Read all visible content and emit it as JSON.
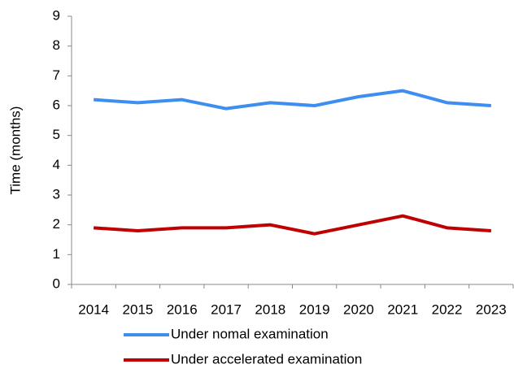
{
  "chart_data": {
    "type": "line",
    "y_label": "Time (months)",
    "categories": [
      "2014",
      "2015",
      "2016",
      "2017",
      "2018",
      "2019",
      "2020",
      "2021",
      "2022",
      "2023"
    ],
    "series": [
      {
        "name": "Under nomal examination",
        "color": "#3d8ef0",
        "values": [
          6.2,
          6.1,
          6.2,
          5.9,
          6.1,
          6.0,
          6.3,
          6.5,
          6.1,
          6.0
        ]
      },
      {
        "name": "Under accelerated examination",
        "color": "#c00000",
        "values": [
          1.9,
          1.8,
          1.9,
          1.9,
          2.0,
          1.7,
          2.0,
          2.3,
          1.9,
          1.8
        ]
      }
    ],
    "ylim": [
      0,
      9
    ],
    "yticks": [
      0,
      1,
      2,
      3,
      4,
      5,
      6,
      7,
      8,
      9
    ],
    "grid": false,
    "legend": "bottom"
  }
}
